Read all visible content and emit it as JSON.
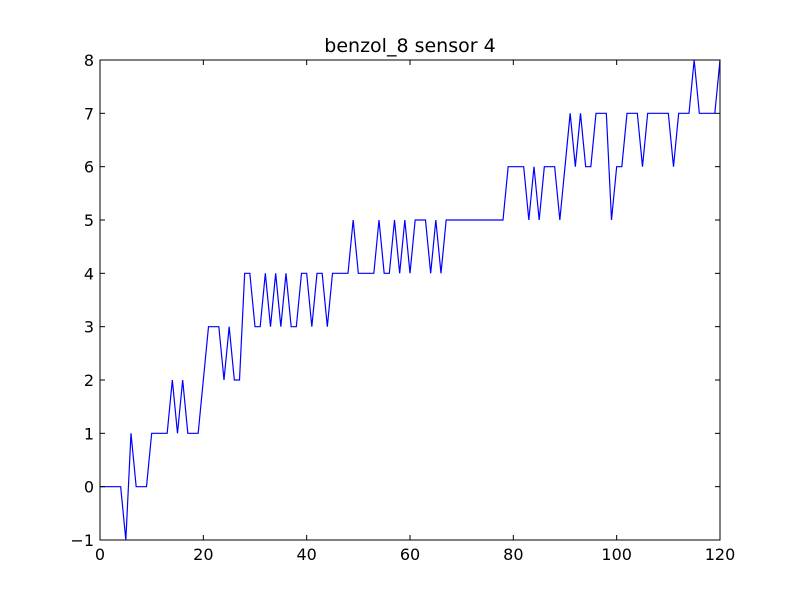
{
  "chart_data": {
    "type": "line",
    "title": "benzol_8 sensor 4",
    "xlabel": "",
    "ylabel": "",
    "xlim": [
      0,
      120
    ],
    "ylim": [
      -1,
      8
    ],
    "x_ticks": [
      0,
      20,
      40,
      60,
      80,
      100,
      120
    ],
    "y_ticks": [
      -1,
      0,
      1,
      2,
      3,
      4,
      5,
      6,
      7,
      8
    ],
    "grid": false,
    "legend": "none",
    "series": [
      {
        "color": "#0000ff",
        "x": [
          0,
          1,
          2,
          3,
          4,
          5,
          6,
          7,
          8,
          9,
          10,
          11,
          12,
          13,
          14,
          15,
          16,
          17,
          18,
          19,
          20,
          21,
          22,
          23,
          24,
          25,
          26,
          27,
          28,
          29,
          30,
          31,
          32,
          33,
          34,
          35,
          36,
          37,
          38,
          39,
          40,
          41,
          42,
          43,
          44,
          45,
          46,
          47,
          48,
          49,
          50,
          51,
          52,
          53,
          54,
          55,
          56,
          57,
          58,
          59,
          60,
          61,
          62,
          63,
          64,
          65,
          66,
          67,
          68,
          69,
          70,
          71,
          72,
          73,
          74,
          75,
          76,
          77,
          78,
          79,
          80,
          81,
          82,
          83,
          84,
          85,
          86,
          87,
          88,
          89,
          90,
          91,
          92,
          93,
          94,
          95,
          96,
          97,
          98,
          99,
          100,
          101,
          102,
          103,
          104,
          105,
          106,
          107,
          108,
          109,
          110,
          111,
          112,
          113,
          114,
          115,
          116,
          117,
          118,
          119,
          120
        ],
        "values": [
          0,
          0,
          0,
          0,
          0,
          -1,
          1,
          0,
          0,
          0,
          1,
          1,
          1,
          1,
          2,
          1,
          2,
          1,
          1,
          1,
          2,
          3,
          3,
          3,
          2,
          3,
          2,
          2,
          4,
          4,
          3,
          3,
          4,
          3,
          4,
          3,
          4,
          3,
          3,
          4,
          4,
          3,
          4,
          4,
          3,
          4,
          4,
          4,
          4,
          5,
          4,
          4,
          4,
          4,
          5,
          4,
          4,
          5,
          4,
          5,
          4,
          5,
          5,
          5,
          4,
          5,
          4,
          5,
          5,
          5,
          5,
          5,
          5,
          5,
          5,
          5,
          5,
          5,
          5,
          6,
          6,
          6,
          6,
          5,
          6,
          5,
          6,
          6,
          6,
          5,
          6,
          7,
          6,
          7,
          6,
          6,
          7,
          7,
          7,
          5,
          6,
          6,
          7,
          7,
          7,
          6,
          7,
          7,
          7,
          7,
          7,
          6,
          7,
          7,
          7,
          8,
          7,
          7,
          7,
          7,
          8
        ]
      }
    ]
  }
}
